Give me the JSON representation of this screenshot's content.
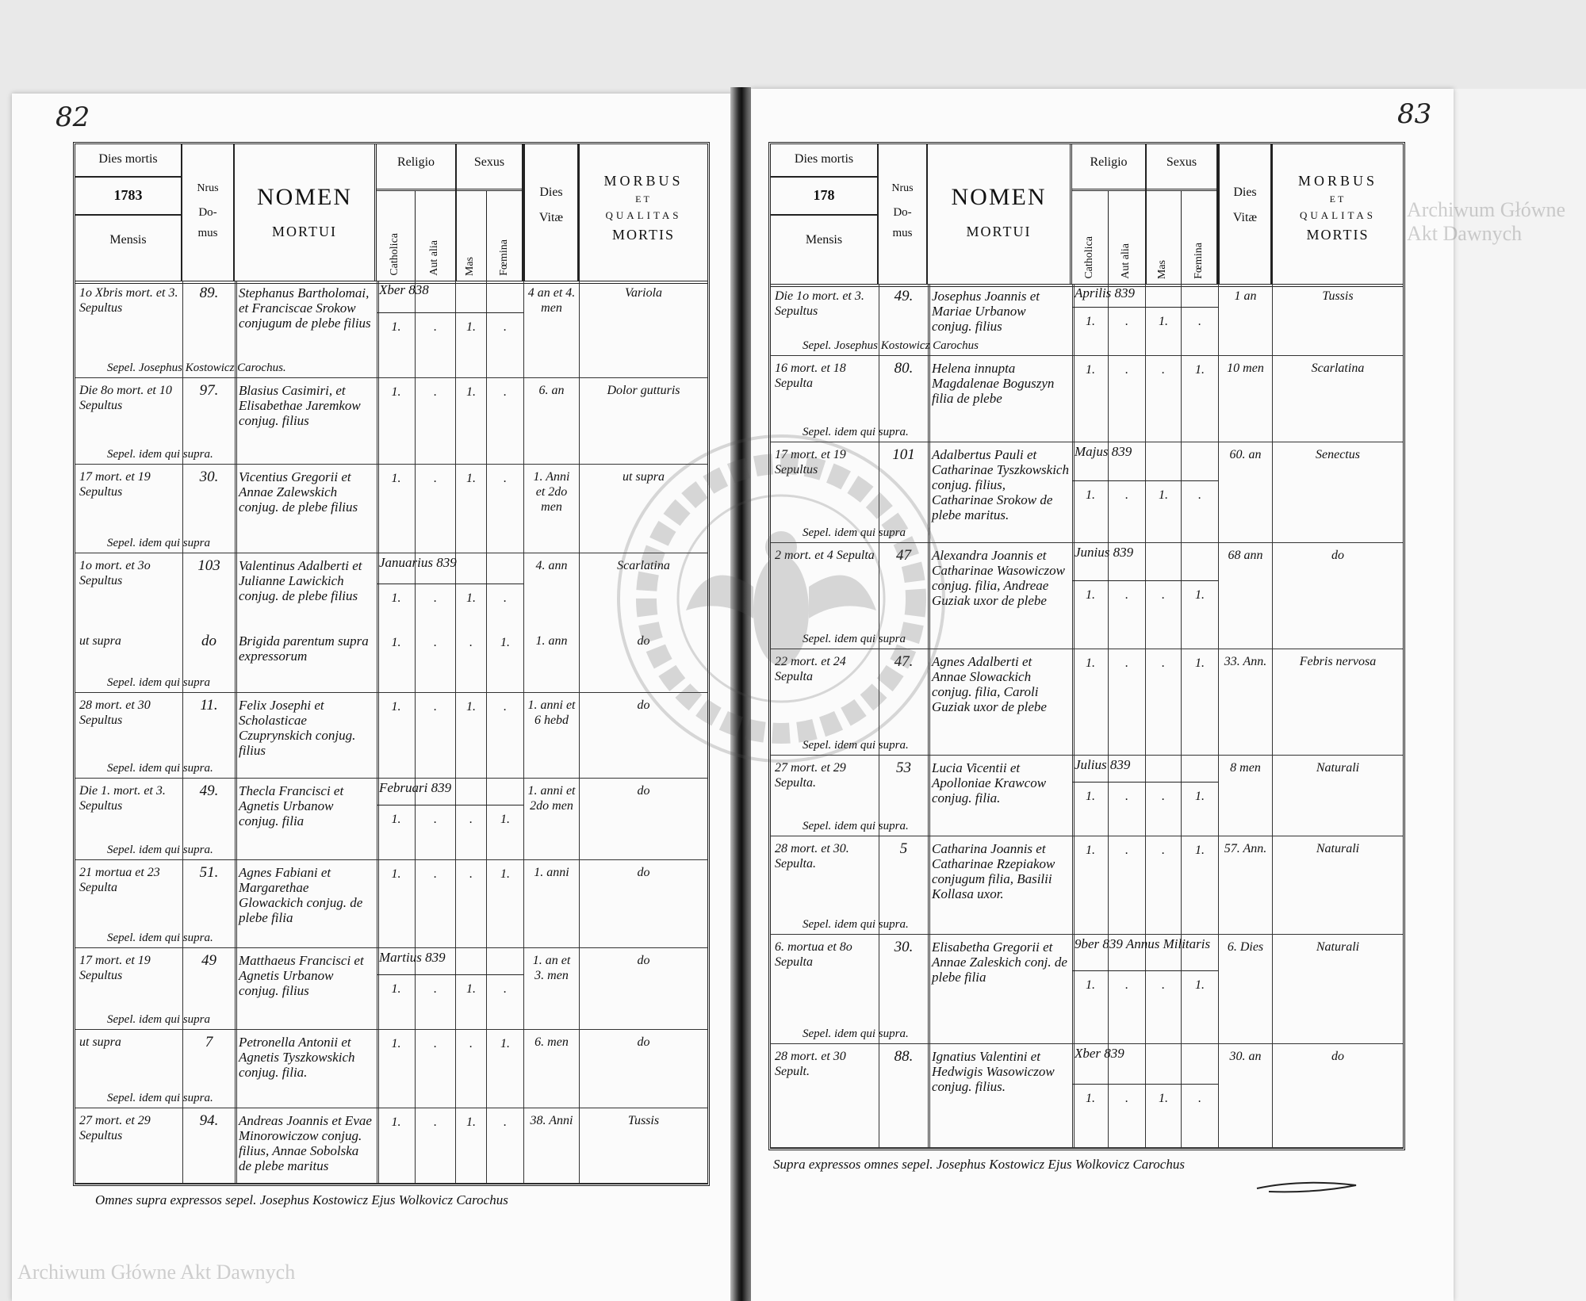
{
  "pages": {
    "left": {
      "page_number": "82",
      "header": {
        "dies_mortis": "Dies mortis",
        "year": "1783",
        "mensis": "Mensis",
        "nrus": "Nrus",
        "domus_a": "Do-",
        "domus_b": "mus",
        "nomen": "NOMEN",
        "mortui": "MORTUI",
        "religio": "Religio",
        "sexus": "Sexus",
        "catholica": "Catholica",
        "aut_alia": "Aut alia",
        "mas": "Mas",
        "foemina": "Fœmina",
        "dies": "Dies",
        "vitae": "Vitæ",
        "morbus": "MORBUS",
        "et": "ET",
        "qualitas": "QUALITAS",
        "mortis": "MORTIS"
      },
      "rows": [
        {
          "date": "1o Xbris mort. et 3. Sepultus",
          "domus": "89.",
          "nomen": "Stephanus Bartholomai, et Franciscae Srokow conjugum de plebe filius",
          "cath": "1.",
          "alia": ".",
          "mas": "1.",
          "fem": ".",
          "vitae": "4 an et 4. men",
          "morbus": "Variola",
          "month": "Xber 838",
          "sepel": "Sepel. Josephus Kostowicz Carochus."
        },
        {
          "date": "Die 8o mort. et 10 Sepultus",
          "domus": "97.",
          "nomen": "Blasius Casimiri, et Elisabethae Jaremkow conjug. filius",
          "cath": "1.",
          "alia": ".",
          "mas": "1.",
          "fem": ".",
          "vitae": "6. an",
          "morbus": "Dolor gutturis",
          "sepel": "Sepel. idem qui supra."
        },
        {
          "date": "17 mort. et 19 Sepultus",
          "domus": "30.",
          "nomen": "Vicentius Gregorii et Annae Zalewskich conjug. de plebe filius",
          "cath": "1.",
          "alia": ".",
          "mas": "1.",
          "fem": ".",
          "vitae": "1. Anni et 2do men",
          "morbus": "ut supra",
          "sepel": "Sepel. idem qui supra"
        },
        {
          "date": "1o mort. et 3o Sepultus",
          "domus": "103",
          "nomen": "Valentinus Adalberti et Julianne Lawickich conjug. de plebe filius",
          "cath": "1.",
          "alia": ".",
          "mas": "1.",
          "fem": ".",
          "vitae": "4. ann",
          "morbus": "Scarlatina",
          "month": "Januarius 839"
        },
        {
          "date": "ut supra",
          "domus": "do",
          "nomen": "Brigida parentum supra expressorum",
          "cath": "1.",
          "alia": ".",
          "mas": ".",
          "fem": "1.",
          "vitae": "1. ann",
          "morbus": "do",
          "sepel": "Sepel. idem qui supra"
        },
        {
          "date": "28 mort. et 30 Sepultus",
          "domus": "11.",
          "nomen": "Felix Josephi et Scholasticae Czuprynskich conjug. filius",
          "cath": "1.",
          "alia": ".",
          "mas": "1.",
          "fem": ".",
          "vitae": "1. anni et 6 hebd",
          "morbus": "do",
          "sepel": "Sepel. idem qui supra."
        },
        {
          "date": "Die 1. mort. et 3. Sepultus",
          "domus": "49.",
          "nomen": "Thecla Francisci et Agnetis Urbanow conjug. filia",
          "cath": "1.",
          "alia": ".",
          "mas": ".",
          "fem": "1.",
          "vitae": "1. anni et 2do men",
          "morbus": "do",
          "month": "Februari 839",
          "sepel": "Sepel. idem qui supra."
        },
        {
          "date": "21 mortua et 23 Sepulta",
          "domus": "51.",
          "nomen": "Agnes Fabiani et Margarethae Glowackich conjug. de plebe filia",
          "cath": "1.",
          "alia": ".",
          "mas": ".",
          "fem": "1.",
          "vitae": "1. anni",
          "morbus": "do",
          "sepel": "Sepel. idem qui supra."
        },
        {
          "date": "17 mort. et 19 Sepultus",
          "domus": "49",
          "nomen": "Matthaeus Francisci et Agnetis Urbanow conjug. filius",
          "cath": "1.",
          "alia": ".",
          "mas": "1.",
          "fem": ".",
          "vitae": "1. an et 3. men",
          "morbus": "do",
          "month": "Martius 839",
          "sepel": "Sepel. idem qui supra"
        },
        {
          "date": "ut supra",
          "domus": "7",
          "nomen": "Petronella Antonii et Agnetis Tyszkowskich conjug. filia.",
          "cath": "1.",
          "alia": ".",
          "mas": ".",
          "fem": "1.",
          "vitae": "6. men",
          "morbus": "do",
          "sepel": "Sepel. idem qui supra."
        },
        {
          "date": "27 mort. et 29 Sepultus",
          "domus": "94.",
          "nomen": "Andreas Joannis et Evae Minorowiczow conjug. filius, Annae Sobolska de plebe maritus",
          "cath": "1.",
          "alia": ".",
          "mas": "1.",
          "fem": ".",
          "vitae": "38. Anni",
          "morbus": "Tussis"
        }
      ],
      "footer": "Omnes supra expressos sepel. Josephus Kostowicz Ejus Wolkovicz Carochus"
    },
    "right": {
      "page_number": "83",
      "header": {
        "dies_mortis": "Dies mortis",
        "year": "178",
        "mensis": "Mensis",
        "nrus": "Nrus",
        "domus_a": "Do-",
        "domus_b": "mus",
        "nomen": "NOMEN",
        "mortui": "MORTUI",
        "religio": "Religio",
        "sexus": "Sexus",
        "catholica": "Catholica",
        "aut_alia": "Aut alia",
        "mas": "Mas",
        "foemina": "Fœmina",
        "dies": "Dies",
        "vitae": "Vitæ",
        "morbus": "MORBUS",
        "et": "ET",
        "qualitas": "QUALITAS",
        "mortis": "MORTIS"
      },
      "rows": [
        {
          "date": "Die 1o mort. et 3. Sepultus",
          "domus": "49.",
          "nomen": "Josephus Joannis et Mariae Urbanow conjug. filius",
          "cath": "1.",
          "alia": ".",
          "mas": "1.",
          "fem": ".",
          "vitae": "1 an",
          "morbus": "Tussis",
          "month": "Aprilis 839",
          "sepel": "Sepel. Josephus Kostowicz Carochus"
        },
        {
          "date": "16 mort. et 18 Sepulta",
          "domus": "80.",
          "nomen": "Helena innupta Magdalenae Boguszyn filia de plebe",
          "cath": "1.",
          "alia": ".",
          "mas": ".",
          "fem": "1.",
          "vitae": "10 men",
          "morbus": "Scarlatina",
          "sepel": "Sepel. idem qui supra."
        },
        {
          "date": "17 mort. et 19 Sepultus",
          "domus": "101",
          "nomen": "Adalbertus Pauli et Catharinae Tyszkowskich conjug. filius, Catharinae Srokow de plebe maritus.",
          "cath": "1.",
          "alia": ".",
          "mas": "1.",
          "fem": ".",
          "vitae": "60. an",
          "morbus": "Senectus",
          "month": "Majus 839",
          "sepel": "Sepel. idem qui supra"
        },
        {
          "date": "2 mort. et 4 Sepulta",
          "domus": "47",
          "nomen": "Alexandra Joannis et Catharinae Wasowiczow conjug. filia, Andreae Guziak uxor de plebe",
          "cath": "1.",
          "alia": ".",
          "mas": ".",
          "fem": "1.",
          "vitae": "68 ann",
          "morbus": "do",
          "month": "Junius 839",
          "sepel": "Sepel. idem qui supra"
        },
        {
          "date": "22 mort. et 24 Sepulta",
          "domus": "47.",
          "nomen": "Agnes Adalberti et Annae Slowackich conjug. filia, Caroli Guziak uxor de plebe",
          "cath": "1.",
          "alia": ".",
          "mas": ".",
          "fem": "1.",
          "vitae": "33. Ann.",
          "morbus": "Febris nervosa",
          "sepel": "Sepel. idem qui supra."
        },
        {
          "date": "27 mort. et 29 Sepulta.",
          "domus": "53",
          "nomen": "Lucia Vicentii et Apolloniae Krawcow conjug. filia.",
          "cath": "1.",
          "alia": ".",
          "mas": ".",
          "fem": "1.",
          "vitae": "8 men",
          "morbus": "Naturali",
          "month": "Julius 839",
          "sepel": "Sepel. idem qui supra."
        },
        {
          "date": "28 mort. et 30. Sepulta.",
          "domus": "5",
          "nomen": "Catharina Joannis et Catharinae Rzepiakow conjugum filia, Basilii Kollasa uxor.",
          "cath": "1.",
          "alia": ".",
          "mas": ".",
          "fem": "1.",
          "vitae": "57. Ann.",
          "morbus": "Naturali",
          "sepel": "Sepel. idem qui supra."
        },
        {
          "date": "6. mortua et 8o Sepulta",
          "domus": "30.",
          "nomen": "Elisabetha Gregorii et Annae Zaleskich conj. de plebe filia",
          "cath": "1.",
          "alia": ".",
          "mas": ".",
          "fem": "1.",
          "vitae": "6. Dies",
          "morbus": "Naturali",
          "month": "9ber 839   Annus Militaris",
          "sepel": "Sepel. idem qui supra."
        },
        {
          "date": "28 mort. et 30 Sepult.",
          "domus": "88.",
          "nomen": "Ignatius Valentini et Hedwigis Wasowiczow conjug. filius.",
          "cath": "1.",
          "alia": ".",
          "mas": "1.",
          "fem": ".",
          "vitae": "30. an",
          "morbus": "do",
          "month": "Xber 839"
        }
      ],
      "footer": "Supra expressos omnes sepel. Josephus Kostowicz Ejus Wolkovicz Carochus"
    }
  },
  "watermark": "Archiwum Główne Akt Dawnych",
  "stamp_text": "ARCHIWUM GŁÓWNE AKT DAWNYCH"
}
